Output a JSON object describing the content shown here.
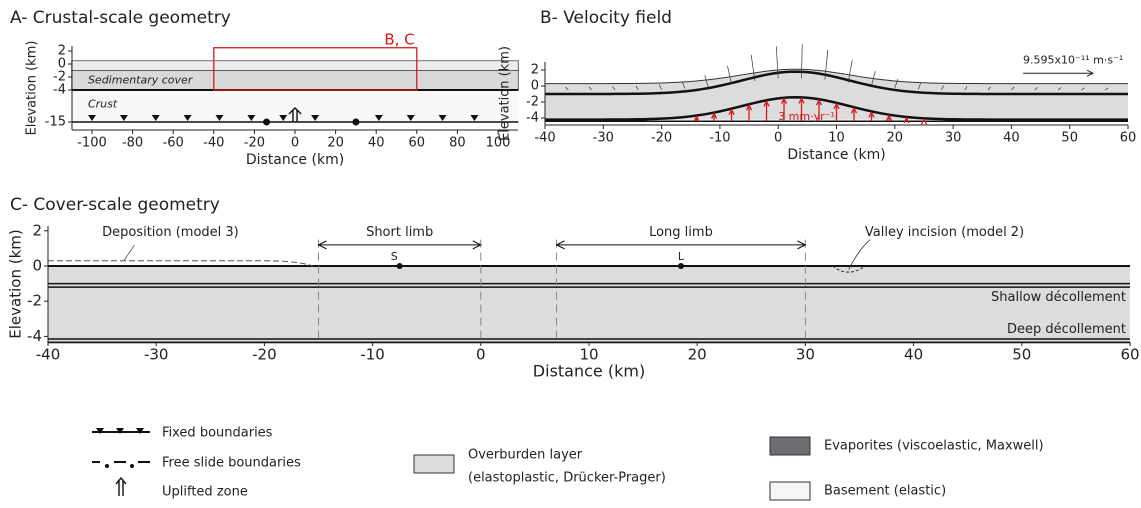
{
  "panels": [
    {
      "title": "A- Crustal-scale geometry",
      "xlabel": "Distance (km)",
      "ylabel": "Elevation (km)",
      "xlim": [
        -110,
        110
      ],
      "ylim": [
        -15,
        2
      ],
      "xticks": [
        -100,
        -80,
        -60,
        -40,
        -20,
        0,
        20,
        40,
        60,
        80,
        100
      ],
      "yticks": [
        2,
        0,
        -2,
        -4,
        -15
      ],
      "labels": {
        "box": "B, C",
        "cover": "Sedimentary cover",
        "crust": "Crust"
      }
    },
    {
      "title": "B- Velocity field",
      "xlabel": "Distance (km)",
      "ylabel": "Elevation (km)",
      "xlim": [
        -40,
        60
      ],
      "ylim": [
        -5,
        3
      ],
      "xticks": [
        -40,
        -30,
        -20,
        -10,
        0,
        10,
        20,
        30,
        40,
        50,
        60
      ],
      "yticks": [
        2,
        0,
        -2,
        -4
      ],
      "labels": {
        "scale": "9.595x10⁻¹¹ m·s⁻¹",
        "uplift": "3 mm·yr⁻¹"
      }
    },
    {
      "title": "C- Cover-scale geometry",
      "xlabel": "Distance (km)",
      "ylabel": "Elevation (km)",
      "xlim": [
        -40,
        60
      ],
      "ylim": [
        -4.5,
        2
      ],
      "xticks": [
        -40,
        -30,
        -20,
        -10,
        0,
        10,
        20,
        30,
        40,
        50,
        60
      ],
      "yticks": [
        2,
        0,
        -2,
        -4
      ],
      "labels": {
        "deposition": "Deposition (model 3)",
        "short": "Short limb",
        "long": "Long limb",
        "s": "S",
        "l": "L",
        "valley": "Valley incision (model 2)",
        "shallow": "Shallow décollement",
        "deep": "Deep décollement"
      }
    }
  ],
  "legend": {
    "fixed": "Fixed boundaries",
    "free": "Free slide boundaries",
    "uplift": "Uplifted zone",
    "overburden1": "Overburden layer",
    "overburden2": "(elastoplastic, Drücker-Prager)",
    "evaporites": "Evaporites (viscoelastic, Maxwell)",
    "basement": "Basement (elastic)"
  }
}
